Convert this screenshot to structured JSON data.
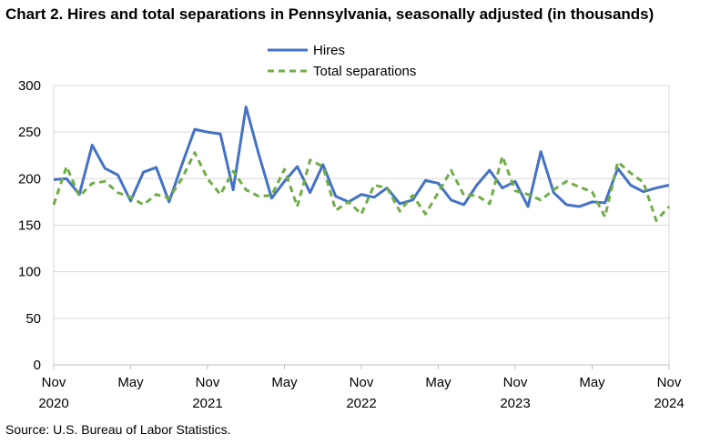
{
  "title": "Chart 2. Hires and total separations in Pennsylvania, seasonally adjusted (in thousands)",
  "source": "Source: U.S. Bureau of Labor Statistics.",
  "colors": {
    "hires": "#4472C4",
    "separations": "#70AD47",
    "grid": "#D9D9D9"
  },
  "chart_data": {
    "type": "line",
    "title": "Chart 2. Hires and total separations in Pennsylvania, seasonally adjusted (in thousands)",
    "xlabel": "",
    "ylabel": "",
    "ylim": [
      0,
      300
    ],
    "yticks": [
      "0",
      "50",
      "100",
      "150",
      "200",
      "250",
      "300"
    ],
    "grid": true,
    "legend_position": "top-center",
    "x_start": "2020-11",
    "x_end": "2024-11",
    "x_ticks": [
      {
        "month": "2020-11",
        "line1": "Nov",
        "line2": "2020"
      },
      {
        "month": "2021-05",
        "line1": "May",
        "line2": ""
      },
      {
        "month": "2021-11",
        "line1": "Nov",
        "line2": "2021"
      },
      {
        "month": "2022-05",
        "line1": "May",
        "line2": ""
      },
      {
        "month": "2022-11",
        "line1": "Nov",
        "line2": "2022"
      },
      {
        "month": "2023-05",
        "line1": "May",
        "line2": ""
      },
      {
        "month": "2023-11",
        "line1": "Nov",
        "line2": "2023"
      },
      {
        "month": "2024-05",
        "line1": "May",
        "line2": ""
      },
      {
        "month": "2024-11",
        "line1": "Nov",
        "line2": "2024"
      }
    ],
    "series": [
      {
        "name": "Hires",
        "style": "solid",
        "values": [
          199,
          200,
          183,
          236,
          211,
          204,
          176,
          207,
          212,
          175,
          215,
          253,
          250,
          248,
          188,
          277,
          226,
          179,
          197,
          213,
          185,
          215,
          181,
          175,
          183,
          180,
          190,
          173,
          177,
          198,
          195,
          177,
          172,
          193,
          209,
          190,
          197,
          170,
          229,
          185,
          172,
          170,
          175,
          174,
          211,
          193,
          186,
          190,
          193
        ]
      },
      {
        "name": "Total separations",
        "style": "dashed",
        "values": [
          172,
          213,
          181,
          195,
          197,
          185,
          180,
          172,
          183,
          179,
          200,
          228,
          200,
          183,
          208,
          188,
          181,
          182,
          210,
          170,
          220,
          213,
          166,
          175,
          162,
          193,
          190,
          165,
          182,
          162,
          185,
          209,
          182,
          182,
          173,
          224,
          187,
          183,
          177,
          188,
          197,
          191,
          186,
          159,
          218,
          206,
          196,
          155,
          170
        ]
      }
    ]
  }
}
